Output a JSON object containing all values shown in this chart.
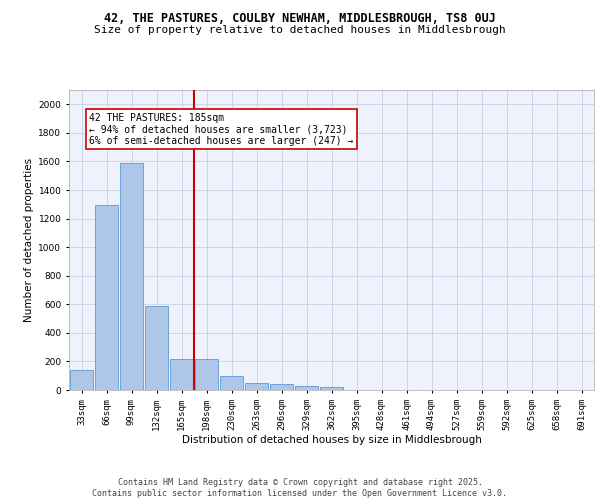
{
  "title_line1": "42, THE PASTURES, COULBY NEWHAM, MIDDLESBROUGH, TS8 0UJ",
  "title_line2": "Size of property relative to detached houses in Middlesbrough",
  "xlabel": "Distribution of detached houses by size in Middlesbrough",
  "ylabel": "Number of detached properties",
  "bin_labels": [
    "33sqm",
    "66sqm",
    "99sqm",
    "132sqm",
    "165sqm",
    "198sqm",
    "230sqm",
    "263sqm",
    "296sqm",
    "329sqm",
    "362sqm",
    "395sqm",
    "428sqm",
    "461sqm",
    "494sqm",
    "527sqm",
    "559sqm",
    "592sqm",
    "625sqm",
    "658sqm",
    "691sqm"
  ],
  "bar_values": [
    140,
    1295,
    1590,
    585,
    215,
    220,
    100,
    50,
    40,
    25,
    18,
    0,
    0,
    0,
    0,
    0,
    0,
    0,
    0,
    0,
    0
  ],
  "bar_color": "#aec6e8",
  "bar_edge_color": "#5b9bd5",
  "vline_x": 4.5,
  "vline_color": "#cc0000",
  "annotation_text": "42 THE PASTURES: 185sqm\n← 94% of detached houses are smaller (3,723)\n6% of semi-detached houses are larger (247) →",
  "annotation_box_color": "#cc0000",
  "ylim": [
    0,
    2100
  ],
  "yticks": [
    0,
    200,
    400,
    600,
    800,
    1000,
    1200,
    1400,
    1600,
    1800,
    2000
  ],
  "footnote": "Contains HM Land Registry data © Crown copyright and database right 2025.\nContains public sector information licensed under the Open Government Licence v3.0.",
  "bg_color": "#eef2fb",
  "grid_color": "#c8d0e8",
  "title_fontsize": 8.5,
  "subtitle_fontsize": 8,
  "axis_label_fontsize": 7.5,
  "tick_fontsize": 6.5,
  "annotation_fontsize": 7,
  "footnote_fontsize": 6
}
